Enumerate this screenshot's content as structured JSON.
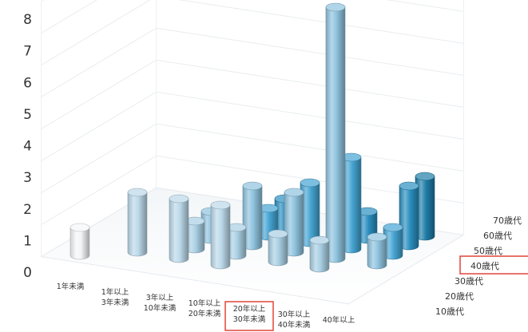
{
  "chart_data": {
    "type": "bar3d",
    "y_ticks": [
      "0",
      "1",
      "2",
      "3",
      "4",
      "5",
      "6",
      "7",
      "8"
    ],
    "ylim": [
      0,
      8
    ],
    "x_categories": [
      [
        "1年未満"
      ],
      [
        "1年以上",
        "3年未満"
      ],
      [
        "3年以上",
        "10年未満"
      ],
      [
        "10年以上",
        "20年未満"
      ],
      [
        "20年以上",
        "30年未満"
      ],
      [
        "30年以上",
        "40年未満"
      ],
      [
        "40年以上"
      ]
    ],
    "z_categories": [
      "10歳代",
      "20歳代",
      "30歳代",
      "40歳代",
      "50歳代",
      "60歳代",
      "70歳代"
    ],
    "highlighted_x": 4,
    "highlighted_z": 3,
    "highlight_color": "#e0453a",
    "series_colors": [
      "#f4f6f8",
      "#bcd9ea",
      "#a9cfe4",
      "#8fc3de",
      "#45a4d2",
      "#2a8fc0",
      "#1f7da8"
    ],
    "values": [
      {
        "x": 0,
        "z": 0,
        "value": 1
      },
      {
        "x": 1,
        "z": 1,
        "value": 2
      },
      {
        "x": 2,
        "z": 1,
        "value": 2
      },
      {
        "x": 3,
        "z": 1,
        "value": 2
      },
      {
        "x": 2,
        "z": 2,
        "value": 1
      },
      {
        "x": 3,
        "z": 2,
        "value": 1
      },
      {
        "x": 4,
        "z": 2,
        "value": 1
      },
      {
        "x": 5,
        "z": 2,
        "value": 1
      },
      {
        "x": 2,
        "z": 3,
        "value": 1
      },
      {
        "x": 3,
        "z": 3,
        "value": 2
      },
      {
        "x": 4,
        "z": 3,
        "value": 2
      },
      {
        "x": 5,
        "z": 3,
        "value": 8
      },
      {
        "x": 6,
        "z": 3,
        "value": 1
      },
      {
        "x": 3,
        "z": 4,
        "value": 1
      },
      {
        "x": 4,
        "z": 4,
        "value": 2
      },
      {
        "x": 5,
        "z": 4,
        "value": 3
      },
      {
        "x": 6,
        "z": 4,
        "value": 1
      },
      {
        "x": 3,
        "z": 5,
        "value": 1
      },
      {
        "x": 5,
        "z": 5,
        "value": 1
      },
      {
        "x": 6,
        "z": 5,
        "value": 2
      },
      {
        "x": 4,
        "z": 6,
        "value": 1
      },
      {
        "x": 6,
        "z": 6,
        "value": 2
      }
    ]
  }
}
